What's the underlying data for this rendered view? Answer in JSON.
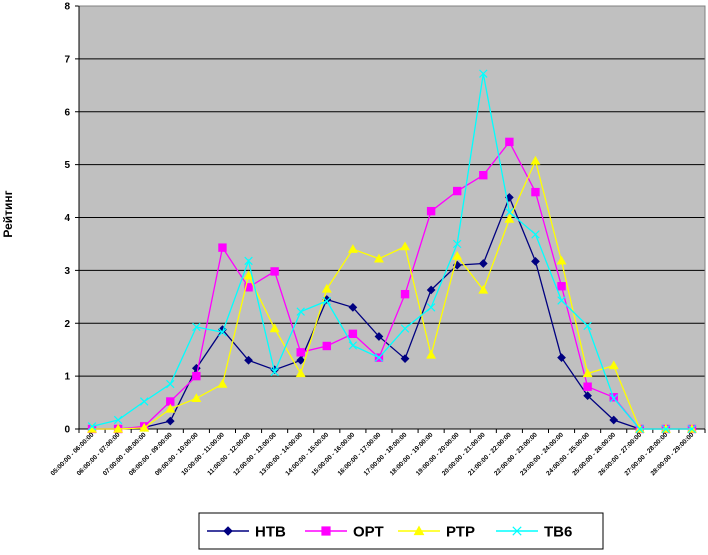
{
  "chart_data": {
    "type": "line",
    "title": "",
    "xlabel": "",
    "ylabel": "Рейтинг",
    "ylim": [
      0,
      8
    ],
    "yticks": [
      "0",
      "1",
      "2",
      "3",
      "4",
      "5",
      "6",
      "7",
      "8"
    ],
    "grid": true,
    "legend_position": "bottom",
    "plot_background": "#c0c0c0",
    "categories": [
      "05:00:00 - 06:00:00",
      "06:00:00 - 07:00:00",
      "07:00:00 - 08:00:00",
      "08:00:00 - 09:00:00",
      "09:00:00 - 10:00:00",
      "10:00:00 - 11:00:00",
      "11:00:00 - 12:00:00",
      "12:00:00 - 13:00:00",
      "13:00:00 - 14:00:00",
      "14:00:00 - 15:00:00",
      "15:00:00 - 16:00:00",
      "16:00:00 - 17:00:00",
      "17:00:00 - 18:00:00",
      "18:00:00 - 19:00:00",
      "19:00:00 - 20:00:00",
      "20:00:00 - 21:00:00",
      "21:00:00 - 22:00:00",
      "22:00:00 - 23:00:00",
      "23:00:00 - 24:00:00",
      "24:00:00 - 25:00:00",
      "25:00:00 - 26:00:00",
      "26:00:00 - 27:00:00",
      "27:00:00 - 28:00:00",
      "28:00:00 - 29:00:00"
    ],
    "series": [
      {
        "name": "НТВ",
        "color": "#000080",
        "marker": "diamond",
        "values": [
          0,
          0,
          0.03,
          0.15,
          1.15,
          1.88,
          1.3,
          1.12,
          1.3,
          2.45,
          2.3,
          1.75,
          1.33,
          2.63,
          3.1,
          3.13,
          4.38,
          3.17,
          1.35,
          0.63,
          0.17,
          0,
          0,
          0
        ]
      },
      {
        "name": "ОРТ",
        "color": "#ff00ff",
        "marker": "square",
        "values": [
          0,
          0,
          0.05,
          0.52,
          1.0,
          3.43,
          2.68,
          2.98,
          1.45,
          1.57,
          1.8,
          1.35,
          2.55,
          4.12,
          4.5,
          4.8,
          5.43,
          4.48,
          2.7,
          0.8,
          0.6,
          0,
          0,
          0
        ]
      },
      {
        "name": "РТР",
        "color": "#ffff00",
        "marker": "triangle",
        "values": [
          0,
          0,
          0.02,
          0.38,
          0.58,
          0.85,
          2.9,
          1.9,
          1.05,
          2.65,
          3.4,
          3.22,
          3.45,
          1.4,
          3.27,
          2.63,
          3.97,
          5.07,
          3.18,
          1.05,
          1.2,
          0,
          0,
          0
        ]
      },
      {
        "name": "ТВ6",
        "color": "#00ffff",
        "marker": "x",
        "values": [
          0.05,
          0.17,
          0.52,
          0.85,
          1.93,
          1.83,
          3.18,
          1.08,
          2.22,
          2.42,
          1.58,
          1.35,
          1.9,
          2.3,
          3.5,
          6.72,
          4.1,
          3.68,
          2.43,
          1.95,
          0.58,
          0,
          0,
          0
        ]
      }
    ]
  }
}
